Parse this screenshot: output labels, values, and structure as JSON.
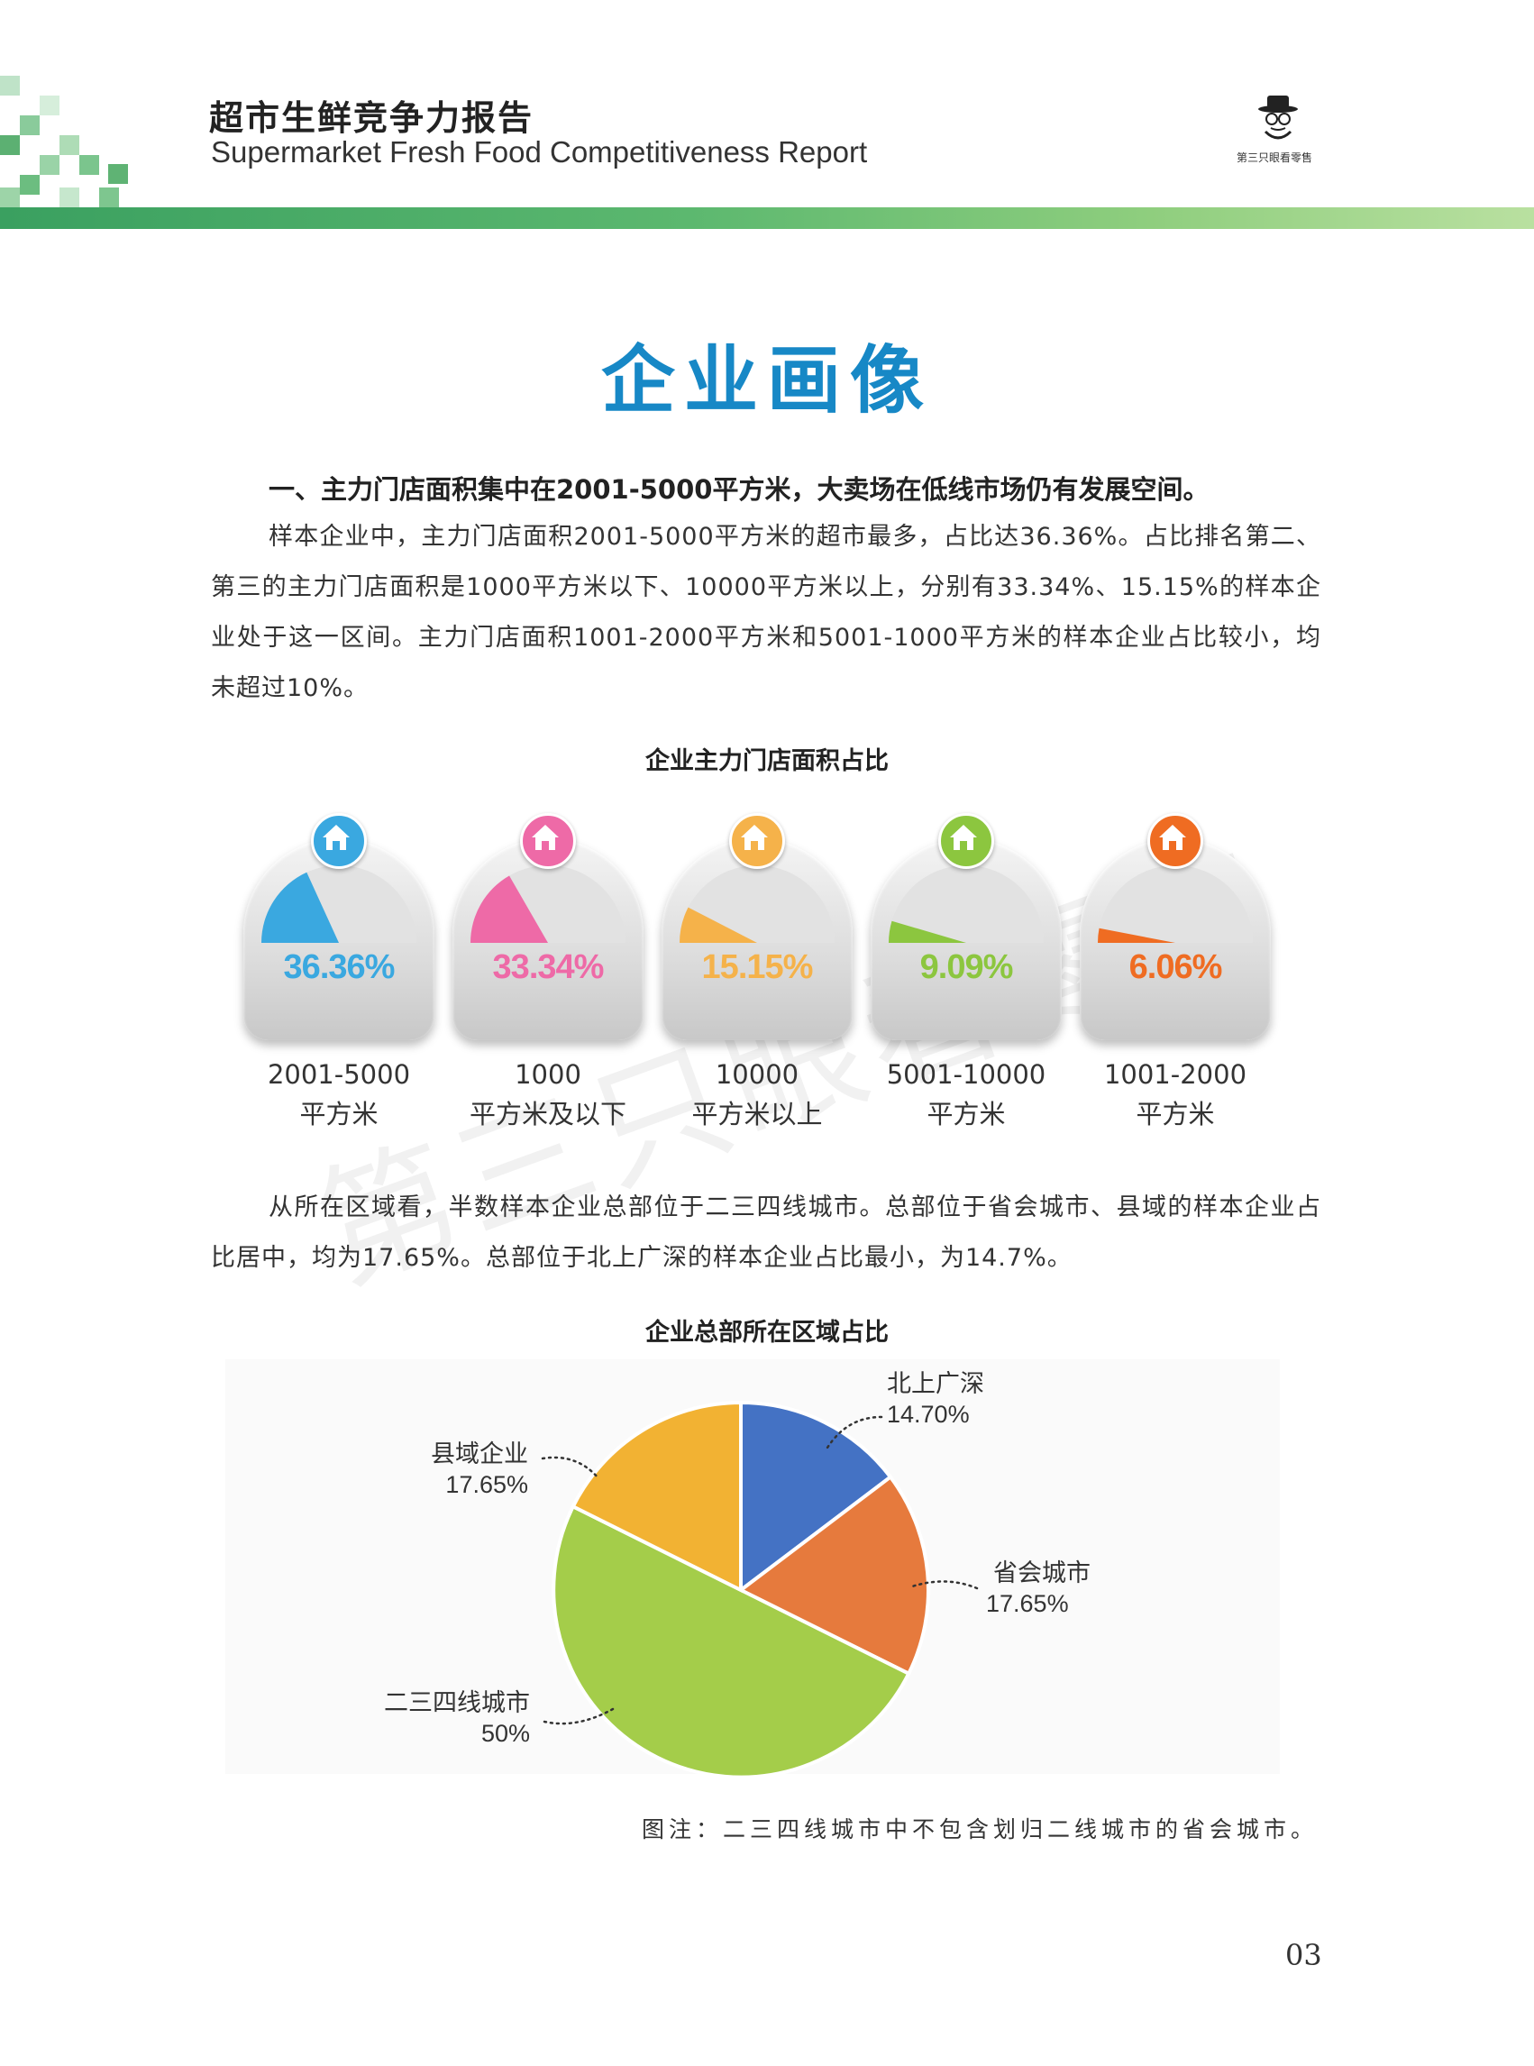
{
  "header": {
    "title": "超市生鲜竞争力报告",
    "subtitle": "Supermarket Fresh Food Competitiveness Report",
    "logo_text": "第三只眼看零售",
    "logo_icon": "detective-hat-icon",
    "accent": "#3aa060"
  },
  "main_title": "企业画像",
  "section1": {
    "heading": "一、主力门店面积集中在2001-5000平方米，大卖场在低线市场仍有发展空间。",
    "paragraph": "样本企业中，主力门店面积2001-5000平方米的超市最多，占比达36.36%。占比排名第二、第三的主力门店面积是1000平方米以下、10000平方米以上，分别有33.34%、15.15%的样本企业处于这一区间。主力门店面积1001-2000平方米和5001-1000平方米的样本企业占比较小，均未超过10%。"
  },
  "chart1": {
    "title": "企业主力门店面积占比",
    "gauges": [
      {
        "value_label": "36.36%",
        "line1": "2001-5000",
        "line2": "平方米",
        "color": "#3aa8e0"
      },
      {
        "value_label": "33.34%",
        "line1": "1000",
        "line2": "平方米及以下",
        "color": "#ee6aa7"
      },
      {
        "value_label": "15.15%",
        "line1": "10000",
        "line2": "平方米以上",
        "color": "#f5b24a"
      },
      {
        "value_label": "9.09%",
        "line1": "5001-10000",
        "line2": "平方米",
        "color": "#8cc63f"
      },
      {
        "value_label": "6.06%",
        "line1": "1001-2000",
        "line2": "平方米",
        "color": "#ef6c22"
      }
    ]
  },
  "section2": {
    "paragraph": "从所在区域看，半数样本企业总部位于二三四线城市。总部位于省会城市、县域的样本企业占比居中，均为17.65%。总部位于北上广深的样本企业占比最小，为14.7%。"
  },
  "chart2": {
    "title": "企业总部所在区域占比",
    "labels": {
      "beishangguangshen": {
        "name": "北上广深",
        "value": "14.70%"
      },
      "shenghui": {
        "name": "省会城市",
        "value": "17.65%"
      },
      "ersansi": {
        "name": "二三四线城市",
        "value": "50%"
      },
      "xianyu": {
        "name": "县域企业",
        "value": "17.65%"
      }
    }
  },
  "chart_data": [
    {
      "type": "bar",
      "title": "企业主力门店面积占比",
      "categories": [
        "2001-5000平方米",
        "1000平方米及以下",
        "10000平方米以上",
        "5001-10000平方米",
        "1001-2000平方米"
      ],
      "values": [
        36.36,
        33.34,
        15.15,
        9.09,
        6.06
      ],
      "unit": "%"
    },
    {
      "type": "pie",
      "title": "企业总部所在区域占比",
      "categories": [
        "北上广深",
        "省会城市",
        "二三四线城市",
        "县域企业"
      ],
      "values": [
        14.7,
        17.65,
        50,
        17.65
      ],
      "colors": [
        "#4472c4",
        "#e67a3d",
        "#a4cd4a",
        "#f2b233"
      ]
    }
  ],
  "footnote": "图注：二三四线城市中不包含划归二线城市的省会城市。",
  "page_number": "03",
  "watermark": "第三只眼看零售"
}
